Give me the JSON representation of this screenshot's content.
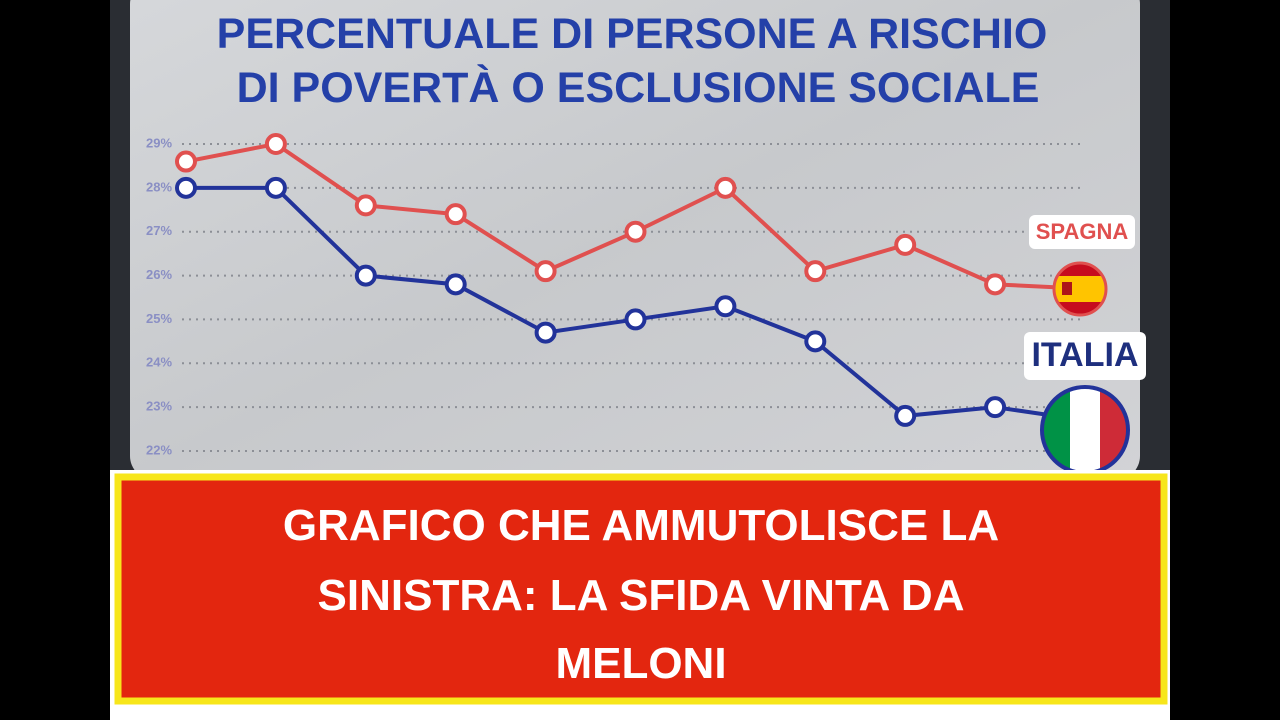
{
  "chart_data": {
    "type": "line",
    "title_lines": [
      "PERCENTUALE DI PERSONE A RISCHIO",
      "DI POVERTÀ O ESCLUSIONE SOCIALE"
    ],
    "ylim": [
      22,
      29
    ],
    "yticks": [
      {
        "value": 22,
        "label": "22%"
      },
      {
        "value": 23,
        "label": "23%"
      },
      {
        "value": 24,
        "label": "24%"
      },
      {
        "value": 25,
        "label": "25%"
      },
      {
        "value": 26,
        "label": "26%"
      },
      {
        "value": 27,
        "label": "27%"
      },
      {
        "value": 28,
        "label": "28%"
      },
      {
        "value": 29,
        "label": "29%"
      }
    ],
    "grid": true,
    "series": [
      {
        "name": "SPAGNA",
        "color": "#e0504f",
        "values": [
          28.6,
          29.0,
          27.6,
          27.4,
          26.1,
          27.0,
          28.0,
          26.1,
          26.7,
          25.8,
          25.7
        ]
      },
      {
        "name": "ITALIA",
        "color": "#22339a",
        "values": [
          28.0,
          28.0,
          26.0,
          25.8,
          24.7,
          25.0,
          25.3,
          24.5,
          22.8,
          23.0,
          22.7
        ]
      }
    ]
  },
  "banner": {
    "lines": [
      "GRAFICO CHE AMMUTOLISCE LA",
      "SINISTRA: LA SFIDA VINTA DA",
      "MELONI"
    ]
  }
}
